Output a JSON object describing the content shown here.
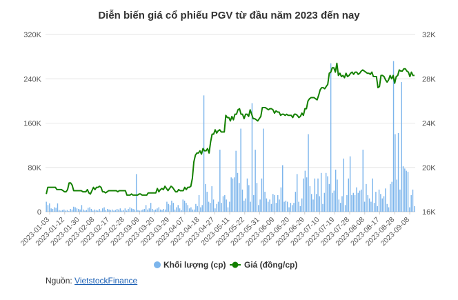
{
  "chart_data": {
    "type": "bar+line",
    "title": "Diễn biến giá cổ phiếu PGV từ đầu năm 2023 đến nay",
    "y_left": {
      "ticks": [
        "0",
        "80K",
        "160K",
        "240K",
        "320K"
      ],
      "ylim": [
        0,
        320000
      ]
    },
    "y_right": {
      "ticks": [
        "16K",
        "20K",
        "24K",
        "28K",
        "32K"
      ],
      "ylim": [
        16000,
        32000
      ]
    },
    "x_ticks": [
      "2023-01-03",
      "2023-01-12",
      "2023-01-30",
      "2023-02-08",
      "2023-02-17",
      "2023-02-28",
      "2023-03-09",
      "2023-03-20",
      "2023-03-29",
      "2023-04-07",
      "2023-04-18",
      "2023-04-27",
      "2023-05-11",
      "2023-05-22",
      "2023-05-31",
      "2023-06-09",
      "2023-06-20",
      "2023-06-29",
      "2023-07-10",
      "2023-07-19",
      "2023-07-28",
      "2023-08-08",
      "2023-08-17",
      "2023-08-28",
      "2023-09-08"
    ],
    "series": [
      {
        "name": "Khối lượng (cp)",
        "kind": "bar",
        "color": "#7cb5ec",
        "values": [
          18000,
          12000,
          15000,
          6000,
          5000,
          8000,
          7000,
          15000,
          3000,
          2000,
          3000,
          4000,
          2000,
          3000,
          1000,
          5000,
          4000,
          9000,
          8000,
          6000,
          5000,
          4000,
          12000,
          4000,
          2000,
          3000,
          7000,
          8000,
          5000,
          2000,
          4000,
          3000,
          2000,
          5000,
          2000,
          6000,
          8000,
          3000,
          5000,
          4000,
          3000,
          4000,
          2000,
          3000,
          5000,
          4000,
          6000,
          2000,
          3000,
          6000,
          2000,
          5000,
          8000,
          6000,
          5000,
          4000,
          68000,
          3000,
          2000,
          3000,
          4000,
          5000,
          12000,
          4000,
          6000,
          16000,
          5000,
          3000,
          4000,
          6000,
          8000,
          4000,
          3000,
          5000,
          4000,
          18000,
          14000,
          12000,
          20000,
          16000,
          4000,
          8000,
          12000,
          6000,
          3000,
          22000,
          20000,
          16000,
          12000,
          6000,
          8000,
          4000,
          4000,
          14000,
          10000,
          30000,
          8000,
          12000,
          210000,
          50000,
          36000,
          18000,
          16000,
          46000,
          22000,
          6000,
          14000,
          18000,
          112000,
          16000,
          28000,
          30000,
          22000,
          8000,
          18000,
          62000,
          60000,
          62000,
          110000,
          70000,
          52000,
          150000,
          40000,
          20000,
          24000,
          60000,
          48000,
          18000,
          196000,
          30000,
          112000,
          52000,
          12000,
          22000,
          60000,
          150000,
          36000,
          24000,
          18000,
          22000,
          14000,
          32000,
          30000,
          16000,
          30000,
          22000,
          44000,
          84000,
          18000,
          20000,
          18000,
          8000,
          16000,
          12000,
          16000,
          36000,
          68000,
          18000,
          10000,
          24000,
          60000,
          74000,
          62000,
          140000,
          46000,
          32000,
          22000,
          60000,
          32000,
          60000,
          28000,
          70000,
          14000,
          34000,
          70000,
          64000,
          50000,
          268000,
          34000,
          38000,
          76000,
          58000,
          22000,
          16000,
          28000,
          96000,
          12000,
          30000,
          60000,
          100000,
          30000,
          34000,
          30000,
          44000,
          34000,
          38000,
          40000,
          112000,
          18000,
          50000,
          30000,
          24000,
          18000,
          60000,
          16000,
          36000,
          10000,
          40000,
          32000,
          24000,
          28000,
          42000,
          14000,
          8000,
          50000,
          54000,
          272000,
          140000,
          58000,
          142000,
          40000,
          234000,
          82000,
          78000,
          74000,
          72000,
          8000,
          30000,
          40000,
          10000
        ]
      },
      {
        "name": "Giá (đồng/cp)",
        "kind": "line",
        "color": "#138000",
        "values": [
          17600,
          18200,
          18200,
          18200,
          18200,
          18200,
          18200,
          18000,
          18000,
          18000,
          18000,
          17900,
          17800,
          17800,
          18000,
          18600,
          18600,
          18400,
          17900,
          17900,
          17900,
          17900,
          17900,
          17900,
          17800,
          17800,
          17800,
          18000,
          17700,
          17600,
          17900,
          18200,
          18000,
          18200,
          18200,
          18300,
          18200,
          17800,
          17800,
          17700,
          17800,
          17900,
          17900,
          17900,
          17900,
          17900,
          17900,
          17800,
          17900,
          17900,
          17900,
          17900,
          17900,
          17500,
          17500,
          17500,
          17600,
          17500,
          17500,
          17500,
          17500,
          17600,
          17600,
          17500,
          17500,
          17500,
          17500,
          17700,
          17700,
          17700,
          17700,
          17700,
          17700,
          18100,
          17800,
          18000,
          18100,
          18000,
          18300,
          18100,
          17900,
          18100,
          18300,
          18200,
          18000,
          17800,
          17800,
          18000,
          17900,
          17900,
          17900,
          18200,
          18000,
          18200,
          18200,
          18300,
          19000,
          20500,
          21100,
          21300,
          21300,
          21500,
          21200,
          21700,
          21500,
          21500,
          21700,
          21300,
          22300,
          23000,
          23000,
          23400,
          23100,
          23300,
          23400,
          23200,
          23200,
          23200,
          24700,
          24500,
          24500,
          24200,
          24600,
          24300,
          24800,
          24800,
          25200,
          25300,
          24800,
          24800,
          24400,
          24800,
          24800,
          24600,
          25200,
          24800,
          24400,
          24400,
          24300,
          24200,
          24400,
          24600,
          25400,
          25400,
          25400,
          25300,
          25200,
          25300,
          25300,
          25200,
          24900,
          25100,
          25000,
          25000,
          24700,
          24800,
          24800,
          24700,
          24800,
          24700,
          24700,
          24700,
          24500,
          24800,
          24800,
          24700,
          24500,
          24600,
          24900,
          24700,
          25300,
          25300,
          26000,
          26200,
          26300,
          26300,
          26300,
          26200,
          26100,
          26500,
          27000,
          27200,
          27200,
          27100,
          27300,
          27500,
          28500,
          28600,
          29000,
          29000,
          28600,
          29400,
          28300,
          28500,
          28200,
          28300,
          28100,
          28500,
          28200,
          28300,
          28500,
          28600,
          28400,
          28600,
          28600,
          28400,
          28500,
          28700,
          28800,
          28700,
          28600,
          28500,
          28500,
          28400,
          28600,
          28200,
          28200,
          28200,
          27200,
          27300,
          28300,
          28300,
          28200,
          27900,
          27700,
          27900,
          28300,
          28000,
          28300,
          27600,
          28200,
          28300,
          28800,
          28700,
          28700,
          28900,
          28900,
          28700,
          28600,
          28200,
          28600,
          28300,
          28300
        ]
      }
    ],
    "legend": {
      "position": "bottom"
    },
    "grid": true
  },
  "source": {
    "label": "Nguồn:",
    "link_text": "VietstockFinance"
  }
}
